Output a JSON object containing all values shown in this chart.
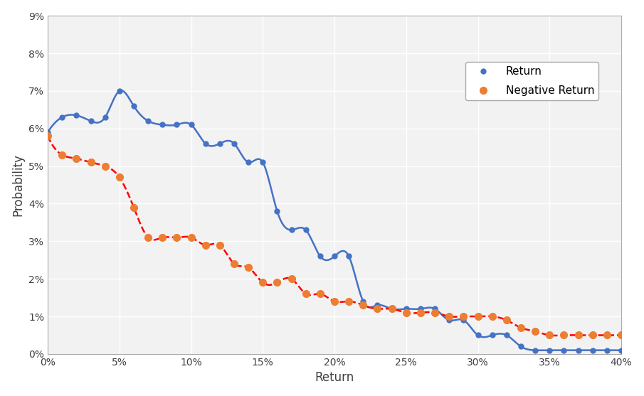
{
  "return_x": [
    0,
    1,
    2,
    3,
    4,
    5,
    6,
    7,
    8,
    9,
    10,
    11,
    12,
    13,
    14,
    15,
    16,
    17,
    18,
    19,
    20,
    21,
    22,
    23,
    24,
    25,
    26,
    27,
    28,
    29,
    30,
    31,
    32,
    33,
    34,
    35,
    36,
    37,
    38,
    39,
    40
  ],
  "return_y": [
    0.059,
    0.063,
    0.0635,
    0.062,
    0.063,
    0.07,
    0.066,
    0.062,
    0.061,
    0.061,
    0.061,
    0.056,
    0.056,
    0.056,
    0.051,
    0.051,
    0.038,
    0.033,
    0.033,
    0.026,
    0.026,
    0.026,
    0.014,
    0.013,
    0.012,
    0.012,
    0.012,
    0.012,
    0.009,
    0.009,
    0.005,
    0.005,
    0.005,
    0.002,
    0.001,
    0.001,
    0.001,
    0.001,
    0.001,
    0.001,
    0.001
  ],
  "neg_x": [
    0,
    1,
    2,
    3,
    4,
    5,
    6,
    7,
    8,
    9,
    10,
    11,
    12,
    13,
    14,
    15,
    16,
    17,
    18,
    19,
    20,
    21,
    22,
    23,
    24,
    25,
    26,
    27,
    28,
    29,
    30,
    31,
    32,
    33,
    34,
    35,
    36,
    37,
    38,
    39,
    40
  ],
  "neg_y": [
    0.058,
    0.053,
    0.052,
    0.051,
    0.05,
    0.047,
    0.039,
    0.031,
    0.031,
    0.031,
    0.031,
    0.029,
    0.029,
    0.024,
    0.023,
    0.019,
    0.019,
    0.02,
    0.016,
    0.016,
    0.014,
    0.014,
    0.013,
    0.012,
    0.012,
    0.011,
    0.011,
    0.011,
    0.01,
    0.01,
    0.01,
    0.01,
    0.009,
    0.007,
    0.006,
    0.005,
    0.005,
    0.005,
    0.005,
    0.005,
    0.005
  ],
  "return_color": "#4472C4",
  "neg_color": "#ED7D31",
  "neg_line_color": "#FF0000",
  "xlabel": "Return",
  "ylabel": "Probability",
  "ylim": [
    0,
    0.09
  ],
  "xlim": [
    0,
    40
  ],
  "ytick_labels": [
    "0%",
    "1%",
    "2%",
    "3%",
    "4%",
    "5%",
    "6%",
    "7%",
    "8%",
    "9%"
  ],
  "xtick_labels": [
    "0%",
    "5%",
    "10%",
    "15%",
    "20%",
    "25%",
    "30%",
    "35%",
    "40%"
  ],
  "xtick_vals": [
    0,
    5,
    10,
    15,
    20,
    25,
    30,
    35,
    40
  ],
  "ytick_vals": [
    0,
    0.01,
    0.02,
    0.03,
    0.04,
    0.05,
    0.06,
    0.07,
    0.08,
    0.09
  ],
  "legend_return": "Return",
  "legend_neg": "Negative Return",
  "bg_color": "#FFFFFF",
  "plot_bg_color": "#F2F2F2",
  "grid_color": "#FFFFFF"
}
